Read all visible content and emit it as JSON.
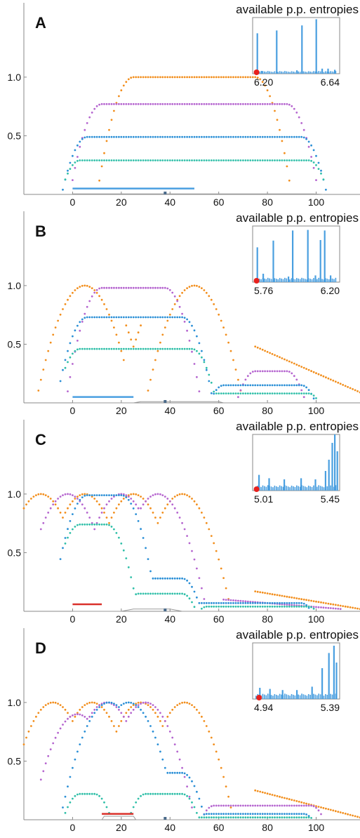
{
  "colors": {
    "orange": "#f28e1c",
    "purple": "#b565cf",
    "blue": "#2a8fd6",
    "teal": "#2fbfa8",
    "bar_blue": "#4a9fe0",
    "bar_red": "#d9302a",
    "inset_bar": "#4a9fe0",
    "marker_red": "#e8211d",
    "axis": "#888888",
    "baseline": "#9a9a9a",
    "text": "#111111"
  },
  "chart_data": [
    {
      "type": "scatter",
      "panel": "A",
      "x_ticks": [
        0,
        20,
        40,
        60,
        80,
        100
      ],
      "y_ticks": [
        0.5,
        1.0
      ],
      "y_tick_labels": [
        "0.5",
        "1.0"
      ],
      "xlim": [
        -20,
        118
      ],
      "ylim": [
        0,
        1.55
      ],
      "grid": false,
      "series": [
        {
          "color_key": "orange",
          "plateaus": [
            [
              25,
              75,
              1.0
            ]
          ],
          "x_min": -20,
          "x_max": 118,
          "x_step": 1
        },
        {
          "color_key": "purple",
          "plateaus": [
            [
              12,
              88,
              0.77
            ]
          ],
          "x_min": -13,
          "x_max": 112,
          "x_step": 1
        },
        {
          "color_key": "blue",
          "plateaus": [
            [
              6,
              94,
              0.49
            ]
          ],
          "x_min": -5,
          "x_max": 106,
          "x_step": 1
        },
        {
          "color_key": "teal",
          "plateaus": [
            [
              3,
              97,
              0.29
            ]
          ],
          "x_min": -3,
          "x_max": 103,
          "x_step": 1
        }
      ],
      "bar": {
        "x0": 0,
        "x1": 50,
        "y": 0.05,
        "color_key": "bar_blue"
      },
      "baseline": [
        [
          0,
          0.005
        ],
        [
          99,
          0.005
        ],
        [
          103,
          0.0
        ]
      ],
      "marker_x": 38,
      "inset": {
        "title": "available p.p. entropies",
        "x_min_label": "6.20",
        "x_max_label": "6.64",
        "marker_pos": 0.03,
        "spikes": [
          [
            0.03,
            0.72
          ],
          [
            0.08,
            0.05
          ],
          [
            0.26,
            0.77
          ],
          [
            0.5,
            0.06
          ],
          [
            0.56,
            0.86
          ],
          [
            0.73,
            0.97
          ],
          [
            0.8,
            0.09
          ],
          [
            0.87,
            0.09
          ],
          [
            0.95,
            0.07
          ]
        ],
        "floor": 0.05
      }
    },
    {
      "type": "scatter",
      "panel": "B",
      "x_ticks": [
        0,
        20,
        40,
        60,
        80,
        100
      ],
      "y_ticks": [
        0.5,
        1.0
      ],
      "y_tick_labels": [
        "0.5",
        "1.0"
      ],
      "xlim": [
        -20,
        118
      ],
      "ylim": [
        0,
        1.55
      ],
      "grid": false,
      "series": [
        {
          "color_key": "orange",
          "humps": [
            [
              5,
              1.0
            ],
            [
              50,
              1.0
            ]
          ],
          "v_min": [
            25,
            0.48
          ],
          "tail": [
            [
              75,
              0.48
            ],
            [
              118,
              0.09
            ]
          ],
          "x_min": -20,
          "x_max": 118,
          "x_step": 1
        },
        {
          "color_key": "purple",
          "plateaus": [
            [
              12,
              38,
              0.98
            ],
            [
              75,
              88,
              0.27
            ]
          ],
          "x_min": -13,
          "x_max": 110,
          "x_step": 1
        },
        {
          "color_key": "blue",
          "plateaus": [
            [
              6,
              45,
              0.73
            ],
            [
              62,
              94,
              0.15
            ]
          ],
          "x_min": -5,
          "x_max": 105,
          "x_step": 1
        },
        {
          "color_key": "teal",
          "plateaus": [
            [
              3,
              49,
              0.46
            ],
            [
              58,
              97,
              0.08
            ]
          ],
          "x_min": -3,
          "x_max": 102,
          "x_step": 1
        }
      ],
      "bar": {
        "x0": 0,
        "x1": 25,
        "y": 0.05,
        "color_key": "bar_blue"
      },
      "baseline": [
        [
          0,
          0.0
        ],
        [
          25,
          0.0
        ],
        [
          28,
          0.01
        ],
        [
          60,
          0.01
        ],
        [
          62,
          0.0
        ],
        [
          99,
          0.0
        ]
      ],
      "marker_x": 38,
      "inset": {
        "title": "available p.p. entropies",
        "x_min_label": "5.76",
        "x_max_label": "6.20",
        "marker_pos": 0.03,
        "spikes": [
          [
            0.03,
            0.62
          ],
          [
            0.1,
            0.15
          ],
          [
            0.22,
            0.74
          ],
          [
            0.4,
            0.1
          ],
          [
            0.45,
            0.92
          ],
          [
            0.63,
            0.93
          ],
          [
            0.72,
            0.12
          ],
          [
            0.78,
            0.75
          ],
          [
            0.83,
            0.92
          ],
          [
            0.9,
            0.12
          ]
        ],
        "floor": 0.08
      }
    },
    {
      "type": "scatter",
      "panel": "C",
      "x_ticks": [
        0,
        20,
        40,
        60,
        80,
        100
      ],
      "y_ticks": [
        0.5,
        1.0
      ],
      "y_tick_labels": [
        "0.5",
        "1.0"
      ],
      "xlim": [
        -20,
        118
      ],
      "ylim": [
        0,
        1.55
      ],
      "grid": false,
      "series": [
        {
          "color_key": "orange",
          "humps": [
            [
              -13,
              1.0
            ],
            [
              5,
              1.0
            ],
            [
              25,
              1.0
            ],
            [
              45,
              1.0
            ]
          ],
          "tail": [
            [
              75,
              0.17
            ],
            [
              118,
              0.02
            ]
          ],
          "x_min": -20,
          "x_max": 118,
          "x_step": 1
        },
        {
          "color_key": "purple",
          "humps": [
            [
              -2,
              1.0
            ],
            [
              20,
              1.0
            ],
            [
              35,
              1.0
            ]
          ],
          "tail": [
            [
              62,
              0.1
            ],
            [
              110,
              0.02
            ]
          ],
          "x_min": -13,
          "x_max": 110,
          "x_step": 1
        },
        {
          "color_key": "blue",
          "plateaus": [
            [
              6,
              20,
              0.99
            ],
            [
              32,
              45,
              0.28
            ],
            [
              52,
              94,
              0.07
            ]
          ],
          "x_min": -5,
          "x_max": 104,
          "x_step": 1
        },
        {
          "color_key": "teal",
          "plateaus": [
            [
              3,
              14,
              0.74
            ],
            [
              27,
              45,
              0.15
            ],
            [
              55,
              97,
              0.04
            ]
          ],
          "x_min": -3,
          "x_max": 101,
          "x_step": 1
        }
      ],
      "bar": {
        "x0": 0,
        "x1": 12,
        "y": 0.06,
        "color_key": "bar_red"
      },
      "baseline": [
        [
          0,
          0.0
        ],
        [
          20,
          0.0
        ],
        [
          25,
          0.02
        ],
        [
          40,
          0.02
        ],
        [
          45,
          0.0
        ],
        [
          99,
          0.0
        ]
      ],
      "marker_x": 38,
      "inset": {
        "title": "available p.p. entropies",
        "x_min_label": "5.01",
        "x_max_label": "5.45",
        "marker_pos": 0.03,
        "spikes": [
          [
            0.05,
            0.28
          ],
          [
            0.17,
            0.22
          ],
          [
            0.35,
            0.2
          ],
          [
            0.55,
            0.22
          ],
          [
            0.72,
            0.2
          ],
          [
            0.84,
            0.35
          ],
          [
            0.88,
            0.55
          ],
          [
            0.92,
            0.85
          ],
          [
            0.95,
            1.0
          ],
          [
            0.98,
            0.7
          ]
        ],
        "floor": 0.1
      }
    },
    {
      "type": "scatter",
      "panel": "D",
      "x_ticks": [
        0,
        20,
        40,
        60,
        80,
        100
      ],
      "y_ticks": [
        0.5,
        1.0
      ],
      "y_tick_labels": [
        "0.5",
        "1.0"
      ],
      "xlim": [
        -20,
        118
      ],
      "ylim": [
        0,
        1.55
      ],
      "grid": false,
      "series": [
        {
          "color_key": "orange",
          "humps": [
            [
              -8,
              1.0
            ],
            [
              8,
              1.0
            ],
            [
              28,
              1.0
            ],
            [
              46,
              1.0
            ]
          ],
          "tail": [
            [
              75,
              0.25
            ],
            [
              118,
              0.02
            ]
          ],
          "x_min": -20,
          "x_max": 118,
          "x_step": 1
        },
        {
          "color_key": "purple",
          "humps": [
            [
              2,
              0.9
            ],
            [
              14,
              1.0
            ],
            [
              30,
              1.0
            ]
          ],
          "plateaus": [
            [
              12,
              25,
              0.79
            ],
            [
              58,
              98,
              0.12
            ]
          ],
          "x_min": -13,
          "x_max": 110,
          "x_step": 1
        },
        {
          "color_key": "blue",
          "humps": [
            [
              15,
              1.0
            ],
            [
              23,
              1.0
            ]
          ],
          "plateaus": [
            [
              35,
              45,
              0.4
            ],
            [
              55,
              95,
              0.05
            ]
          ],
          "x_min": -5,
          "x_max": 104,
          "x_step": 1
        },
        {
          "color_key": "teal",
          "plateaus": [
            [
              3,
              9,
              0.22
            ],
            [
              30,
              45,
              0.22
            ],
            [
              52,
              97,
              0.02
            ]
          ],
          "x_min": -3,
          "x_max": 101,
          "x_step": 1
        }
      ],
      "bar": {
        "x0": 12,
        "x1": 25,
        "y": 0.05,
        "color_key": "bar_red"
      },
      "baseline": [
        [
          0,
          0.0
        ],
        [
          12,
          0.0
        ],
        [
          13,
          0.03
        ],
        [
          25,
          0.03
        ],
        [
          26,
          0.0
        ],
        [
          99,
          0.0
        ]
      ],
      "marker_x": 38,
      "inset": {
        "title": "available p.p. entropies",
        "x_min_label": "4.94",
        "x_max_label": "5.39",
        "marker_pos": 0.06,
        "spikes": [
          [
            0.06,
            0.2
          ],
          [
            0.18,
            0.18
          ],
          [
            0.33,
            0.16
          ],
          [
            0.5,
            0.16
          ],
          [
            0.68,
            0.22
          ],
          [
            0.8,
            0.55
          ],
          [
            0.88,
            0.82
          ],
          [
            0.94,
            0.95
          ],
          [
            0.97,
            0.65
          ]
        ],
        "floor": 0.1
      }
    }
  ]
}
